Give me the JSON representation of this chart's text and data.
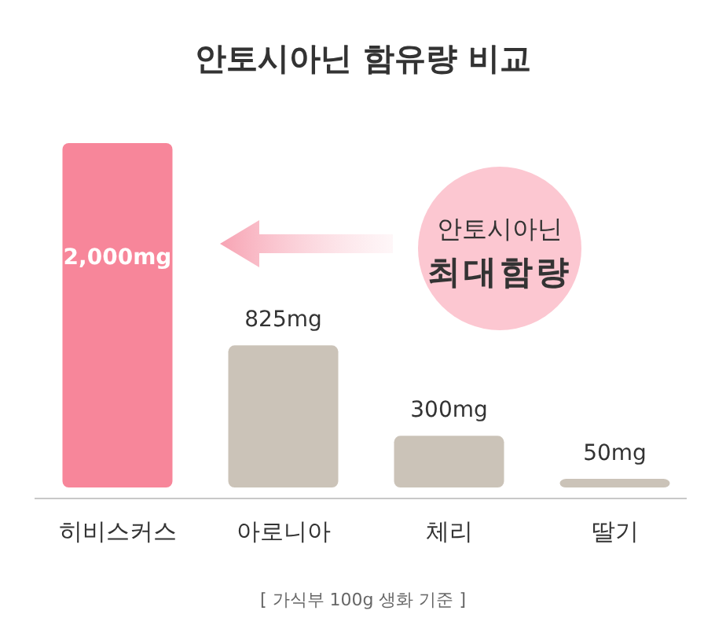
{
  "chart_data": {
    "type": "bar",
    "title": "안토시아닌 함유량 비교",
    "categories": [
      "히비스커스",
      "아로니아",
      "체리",
      "딸기"
    ],
    "values": [
      2000,
      825,
      300,
      50
    ],
    "colors": [
      "#f7869a",
      "#cbc3b8",
      "#cbc3b8",
      "#cbc3b8"
    ],
    "value_labels": [
      "2,000mg",
      "825mg",
      "300mg",
      "50mg"
    ],
    "annotations": [
      "안토시아닌 최대함량",
      "[ 가식부 100g 생화 기준 ]"
    ]
  }
}
